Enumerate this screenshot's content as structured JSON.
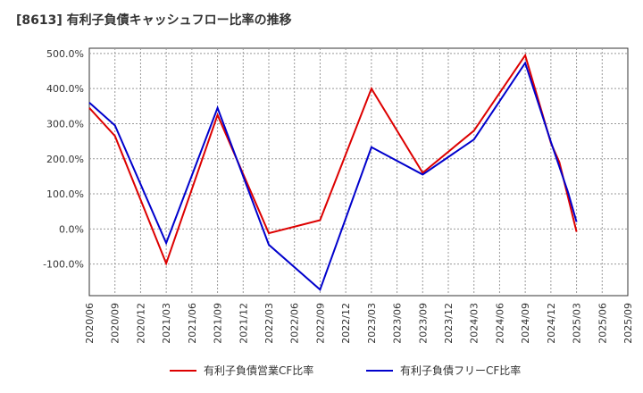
{
  "chart_data": {
    "type": "line",
    "title": "[8613]  有利子負債キャッシュフロー比率の推移",
    "xlabel": "",
    "ylabel": "",
    "x_ticks": [
      "2020/06",
      "2020/09",
      "2020/12",
      "2021/03",
      "2021/06",
      "2021/09",
      "2021/12",
      "2022/03",
      "2022/06",
      "2022/09",
      "2022/12",
      "2023/03",
      "2023/06",
      "2023/09",
      "2023/12",
      "2024/03",
      "2024/06",
      "2024/09",
      "2024/12",
      "2025/03",
      "2025/06",
      "2025/09"
    ],
    "y_ticks": [
      "500.0%",
      "400.0%",
      "300.0%",
      "200.0%",
      "100.0%",
      "0.0%",
      "-100.0%"
    ],
    "ylim": [
      -190,
      515
    ],
    "grid": true,
    "legend_position": "bottom",
    "series": [
      {
        "name": "有利子負債営業CF比率",
        "color": "#dd0000",
        "x": [
          "2020/06",
          "2020/09",
          "2021/03",
          "2021/09",
          "2022/03",
          "2022/09",
          "2023/03",
          "2023/09",
          "2024/03",
          "2024/09",
          "2024/12",
          "2025/01",
          "2025/03"
        ],
        "values": [
          345,
          265,
          -98,
          325,
          -12,
          25,
          400,
          160,
          280,
          495,
          245,
          190,
          -8
        ]
      },
      {
        "name": "有利子負債フリーCF比率",
        "color": "#0000cc",
        "x": [
          "2020/06",
          "2020/09",
          "2021/03",
          "2021/09",
          "2022/03",
          "2022/09",
          "2023/03",
          "2023/09",
          "2024/03",
          "2024/09",
          "2024/12",
          "2025/02",
          "2025/03"
        ],
        "values": [
          360,
          295,
          -40,
          345,
          -45,
          -173,
          233,
          155,
          255,
          473,
          248,
          105,
          20
        ]
      }
    ]
  }
}
